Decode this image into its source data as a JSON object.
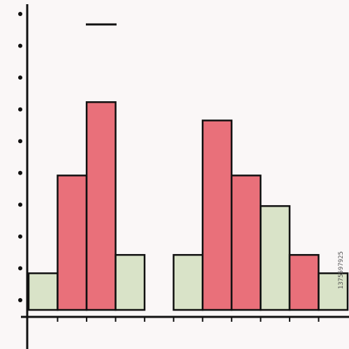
{
  "chart_data": {
    "type": "bar",
    "categories": [
      "",
      "",
      "",
      "",
      "",
      "",
      "",
      "",
      "",
      "",
      ""
    ],
    "values": [
      1.2,
      4.4,
      6.8,
      1.8,
      0,
      1.8,
      6.2,
      4.4,
      3.4,
      1.8,
      1.2
    ],
    "bar_colors": [
      "#d9e3c8",
      "#e9707a",
      "#e9707a",
      "#d9e3c8",
      "",
      "#d9e3c8",
      "#e9707a",
      "#e9707a",
      "#d9e3c8",
      "#e9707a",
      "#d9e3c8"
    ],
    "ylim": [
      0,
      9
    ],
    "y_tick_count": 10,
    "grid": false,
    "legend": {
      "position": "top-left",
      "marker_color": "#111111"
    },
    "title": "",
    "xlabel": "",
    "ylabel": ""
  },
  "colors": {
    "background": "#faf7f7",
    "axis": "#111111",
    "bar_outline": "#111111"
  },
  "watermark": {
    "id_text": "1375597925"
  }
}
